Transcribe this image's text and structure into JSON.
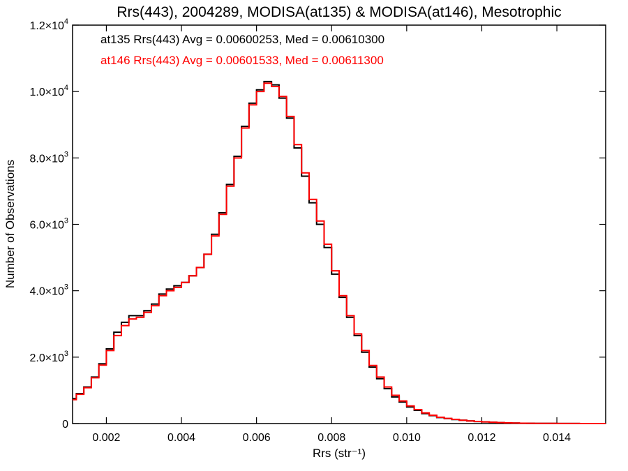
{
  "chart_data": {
    "type": "line",
    "title": "Rrs(443), 2004289, MODISA(at135) & MODISA(at146), Mesotrophic",
    "xlabel": "Rrs (str⁻¹)",
    "ylabel": "Number of Observations",
    "xlim": [
      0.0011,
      0.0153
    ],
    "ylim": [
      0,
      12000
    ],
    "grid": false,
    "step": true,
    "x_ticks": [
      {
        "value": 0.002,
        "label": "0.002"
      },
      {
        "value": 0.004,
        "label": "0.004"
      },
      {
        "value": 0.006,
        "label": "0.006"
      },
      {
        "value": 0.008,
        "label": "0.008"
      },
      {
        "value": 0.01,
        "label": "0.010"
      },
      {
        "value": 0.012,
        "label": "0.012"
      },
      {
        "value": 0.014,
        "label": "0.014"
      }
    ],
    "y_ticks": [
      {
        "value": 0,
        "mant": "0",
        "exp": ""
      },
      {
        "value": 2000,
        "mant": "2.0×10",
        "exp": "3"
      },
      {
        "value": 4000,
        "mant": "4.0×10",
        "exp": "3"
      },
      {
        "value": 6000,
        "mant": "6.0×10",
        "exp": "3"
      },
      {
        "value": 8000,
        "mant": "8.0×10",
        "exp": "3"
      },
      {
        "value": 10000,
        "mant": "1.0×10",
        "exp": "4"
      },
      {
        "value": 12000,
        "mant": "1.2×10",
        "exp": "4"
      }
    ],
    "legend_placement": "top-left",
    "series": [
      {
        "label": "at135 Rrs(443) Avg = 0.00600253, Med = 0.00610300",
        "color": "#000000",
        "x": [
          0.0011,
          0.0013,
          0.0015,
          0.0017,
          0.0019,
          0.0021,
          0.0023,
          0.0025,
          0.0027,
          0.0029,
          0.0031,
          0.0033,
          0.0035,
          0.0037,
          0.0039,
          0.0041,
          0.0043,
          0.0045,
          0.0047,
          0.0049,
          0.0051,
          0.0053,
          0.0055,
          0.0057,
          0.0059,
          0.0061,
          0.0063,
          0.0065,
          0.0067,
          0.0069,
          0.0071,
          0.0073,
          0.0075,
          0.0077,
          0.0079,
          0.0081,
          0.0083,
          0.0085,
          0.0087,
          0.0089,
          0.0091,
          0.0093,
          0.0095,
          0.0097,
          0.0099,
          0.0101,
          0.0103,
          0.0105,
          0.0107,
          0.0109,
          0.0111,
          0.0113,
          0.0115,
          0.0117,
          0.0119,
          0.0121,
          0.0123,
          0.0125,
          0.0127,
          0.0129,
          0.0131,
          0.0133,
          0.0135,
          0.0137,
          0.0139,
          0.0141,
          0.0143,
          0.0145,
          0.0147,
          0.0149,
          0.0151,
          0.0153
        ],
        "y": [
          750,
          900,
          1100,
          1400,
          1800,
          2250,
          2750,
          3050,
          3250,
          3250,
          3400,
          3600,
          3900,
          4050,
          4150,
          4250,
          4450,
          4700,
          5100,
          5700,
          6350,
          7200,
          8050,
          8950,
          9650,
          10050,
          10300,
          10200,
          9800,
          9200,
          8300,
          7450,
          6650,
          6000,
          5300,
          4500,
          3800,
          3200,
          2650,
          2150,
          1700,
          1350,
          1050,
          800,
          650,
          500,
          400,
          300,
          240,
          180,
          150,
          120,
          100,
          80,
          60,
          50,
          40,
          30,
          22,
          15,
          10,
          8,
          6,
          5,
          4,
          3,
          2,
          2,
          1,
          1,
          1,
          1
        ]
      },
      {
        "label": "at146 Rrs(443) Avg = 0.00601533, Med = 0.00611300",
        "color": "#ff0000",
        "x": [
          0.0011,
          0.0013,
          0.0015,
          0.0017,
          0.0019,
          0.0021,
          0.0023,
          0.0025,
          0.0027,
          0.0029,
          0.0031,
          0.0033,
          0.0035,
          0.0037,
          0.0039,
          0.0041,
          0.0043,
          0.0045,
          0.0047,
          0.0049,
          0.0051,
          0.0053,
          0.0055,
          0.0057,
          0.0059,
          0.0061,
          0.0063,
          0.0065,
          0.0067,
          0.0069,
          0.0071,
          0.0073,
          0.0075,
          0.0077,
          0.0079,
          0.0081,
          0.0083,
          0.0085,
          0.0087,
          0.0089,
          0.0091,
          0.0093,
          0.0095,
          0.0097,
          0.0099,
          0.0101,
          0.0103,
          0.0105,
          0.0107,
          0.0109,
          0.0111,
          0.0113,
          0.0115,
          0.0117,
          0.0119,
          0.0121,
          0.0123,
          0.0125,
          0.0127,
          0.0129,
          0.0131,
          0.0133,
          0.0135,
          0.0137,
          0.0139,
          0.0141,
          0.0143,
          0.0145,
          0.0147,
          0.0149,
          0.0151,
          0.0153
        ],
        "y": [
          720,
          880,
          1080,
          1380,
          1760,
          2200,
          2650,
          2950,
          3150,
          3200,
          3350,
          3550,
          3850,
          4000,
          4100,
          4250,
          4450,
          4700,
          5100,
          5650,
          6300,
          7150,
          8000,
          8900,
          9600,
          10000,
          10250,
          10150,
          9850,
          9250,
          8400,
          7550,
          6750,
          6100,
          5400,
          4600,
          3850,
          3250,
          2700,
          2200,
          1750,
          1400,
          1100,
          850,
          680,
          530,
          420,
          320,
          250,
          190,
          155,
          125,
          100,
          80,
          62,
          50,
          40,
          30,
          22,
          15,
          10,
          8,
          6,
          5,
          4,
          3,
          2,
          2,
          1,
          1,
          1,
          1
        ]
      }
    ]
  }
}
